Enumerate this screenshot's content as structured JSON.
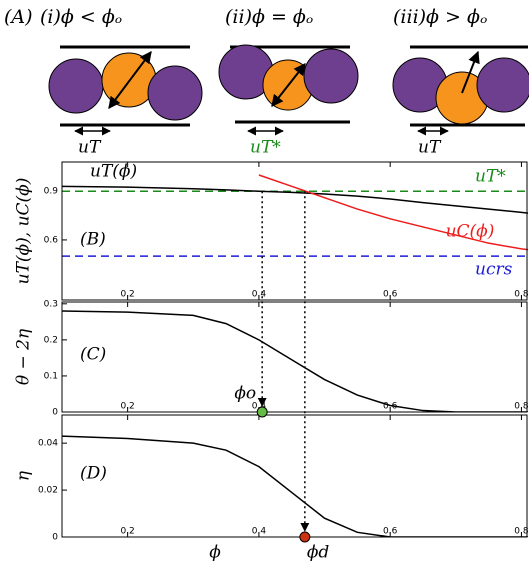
{
  "panel_a": {
    "label": "(A)",
    "cases": [
      {
        "title": "(i)ϕ < ϕₒ",
        "speed": "uT"
      },
      {
        "title": "(ii)ϕ = ϕₒ",
        "speed": "uT*"
      },
      {
        "title": "(iii)ϕ > ϕₒ",
        "speed": "uT"
      }
    ]
  },
  "chart_data": [
    {
      "type": "line",
      "panel": "(B)",
      "ylabel": "uT(ϕ), uC(ϕ)",
      "xlim": [
        0.1,
        0.81
      ],
      "ylim": [
        0.23,
        1.08
      ],
      "xticks": [
        0.2,
        0.4,
        0.6,
        0.8
      ],
      "yticks": [
        0.6,
        0.9
      ],
      "x": [
        0.1,
        0.2,
        0.3,
        0.35,
        0.4,
        0.45,
        0.5,
        0.55,
        0.6,
        0.65,
        0.7,
        0.75,
        0.8,
        0.81
      ],
      "series": [
        {
          "name": "uT(ϕ)",
          "color": "#000000",
          "values": [
            0.93,
            0.925,
            0.915,
            0.908,
            0.9,
            0.893,
            0.883,
            0.87,
            0.852,
            0.83,
            0.81,
            0.79,
            0.77,
            0.765
          ]
        },
        {
          "name": "uC(ϕ)",
          "color": "#ee1c1c",
          "values": [
            null,
            null,
            null,
            null,
            1.0,
            0.93,
            0.86,
            0.79,
            0.73,
            0.68,
            0.63,
            0.58,
            0.545,
            0.54
          ]
        }
      ],
      "hlines": [
        {
          "name": "uT*",
          "value": 0.9,
          "color": "#1a8a1a"
        },
        {
          "name": "ucrs",
          "value": 0.5,
          "color": "#1c1cd6"
        }
      ]
    },
    {
      "type": "line",
      "panel": "(C)",
      "ylabel": "θ − 2η",
      "xlim": [
        0.1,
        0.81
      ],
      "ylim": [
        0,
        0.305
      ],
      "xticks": [
        0.2,
        0.4,
        0.6,
        0.8
      ],
      "yticks": [
        0,
        0.1,
        0.2,
        0.3
      ],
      "x": [
        0.1,
        0.2,
        0.3,
        0.35,
        0.4,
        0.45,
        0.5,
        0.55,
        0.6,
        0.65,
        0.7,
        0.75,
        0.8,
        0.81
      ],
      "series": [
        {
          "name": "θ − 2η",
          "color": "#000000",
          "values": [
            0.28,
            0.277,
            0.268,
            0.245,
            0.2,
            0.145,
            0.09,
            0.047,
            0.018,
            0.004,
            0,
            0,
            0,
            0
          ]
        }
      ],
      "points": [
        {
          "x": 0.405,
          "y": 0,
          "label": "ϕo",
          "color": "#66bb44"
        }
      ]
    },
    {
      "type": "line",
      "panel": "(D)",
      "ylabel": "η",
      "xlabel": "ϕ",
      "xlim": [
        0.1,
        0.81
      ],
      "ylim": [
        0,
        0.052
      ],
      "xticks": [
        0.2,
        0.4,
        0.6,
        0.8
      ],
      "yticks": [
        0,
        0.02,
        0.04
      ],
      "x": [
        0.1,
        0.2,
        0.3,
        0.35,
        0.4,
        0.45,
        0.5,
        0.55,
        0.6,
        0.65,
        0.7,
        0.75,
        0.8,
        0.81
      ],
      "series": [
        {
          "name": "η",
          "color": "#000000",
          "values": [
            0.043,
            0.042,
            0.04,
            0.037,
            0.03,
            0.019,
            0.008,
            0.002,
            0,
            0,
            0,
            0,
            0,
            0
          ]
        }
      ],
      "points": [
        {
          "x": 0.47,
          "y": 0,
          "label": "ϕd",
          "color": "#cc3311"
        }
      ]
    }
  ]
}
